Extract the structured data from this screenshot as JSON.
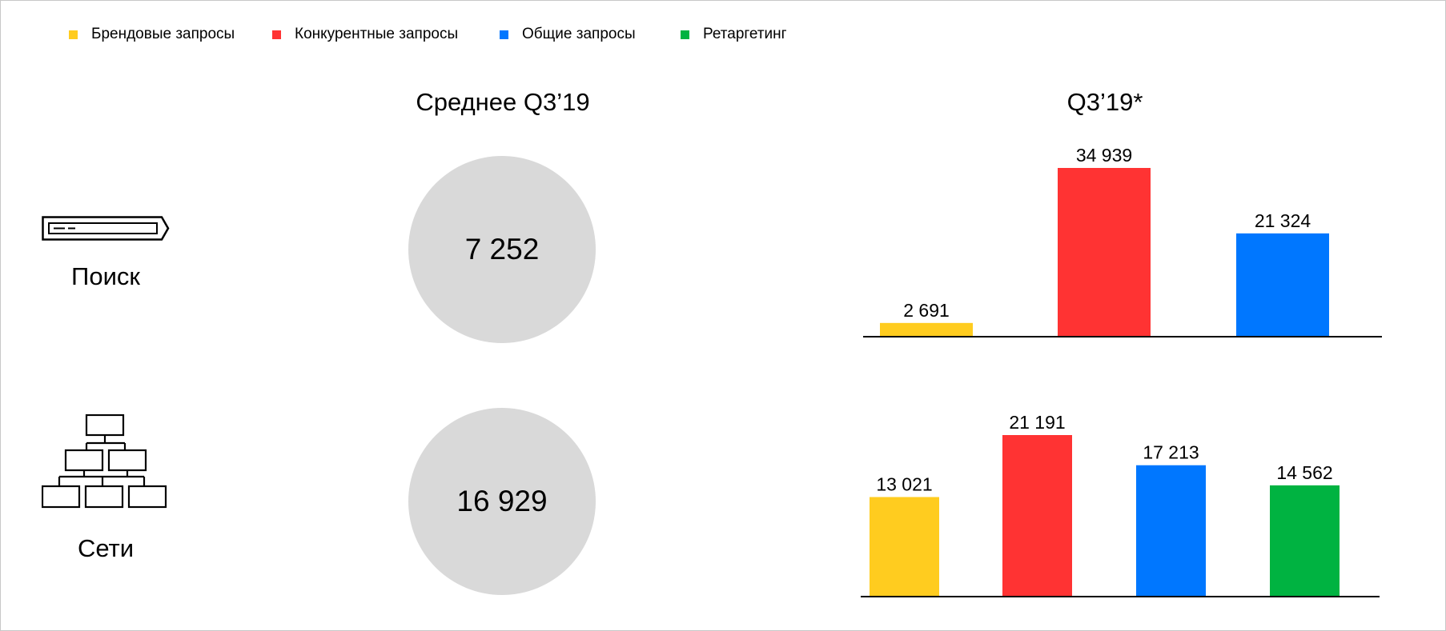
{
  "colors": {
    "brand": "#ffcc1f",
    "competitor": "#ff3333",
    "general": "#0077ff",
    "retargeting": "#00b341",
    "circle": "#d9d9d9"
  },
  "legend": [
    {
      "label": "Брендовые запросы",
      "color": "#ffcc1f"
    },
    {
      "label": "Конкурентные запросы",
      "color": "#ff3333"
    },
    {
      "label": "Общие запросы",
      "color": "#0077ff"
    },
    {
      "label": "Ретаргетинг",
      "color": "#00b341"
    }
  ],
  "columns": {
    "average_title": "Среднее Q3’19",
    "quarter_title": "Q3’19*"
  },
  "rows": {
    "search": {
      "label": "Поиск",
      "icon": "search-bar-icon",
      "average": "7 252"
    },
    "networks": {
      "label": "Сети",
      "icon": "network-hierarchy-icon",
      "average": "16 929"
    }
  },
  "chart_data": [
    {
      "type": "bar",
      "title": "Q3’19*",
      "row": "Поиск",
      "categories": [
        "Брендовые запросы",
        "Конкурентные запросы",
        "Общие запросы"
      ],
      "values": [
        2691,
        34939,
        21324
      ],
      "value_labels": [
        "2 691",
        "34 939",
        "21 324"
      ],
      "colors": [
        "#ffcc1f",
        "#ff3333",
        "#0077ff"
      ],
      "ylim": [
        0,
        34939
      ],
      "grid": false
    },
    {
      "type": "bar",
      "title": "Q3’19*",
      "row": "Сети",
      "categories": [
        "Брендовые запросы",
        "Конкурентные запросы",
        "Общие запросы",
        "Ретаргетинг"
      ],
      "values": [
        13021,
        21191,
        17213,
        14562
      ],
      "value_labels": [
        "13 021",
        "21 191",
        "17 213",
        "14 562"
      ],
      "colors": [
        "#ffcc1f",
        "#ff3333",
        "#0077ff",
        "#00b341"
      ],
      "ylim": [
        0,
        21191
      ],
      "grid": false
    }
  ]
}
